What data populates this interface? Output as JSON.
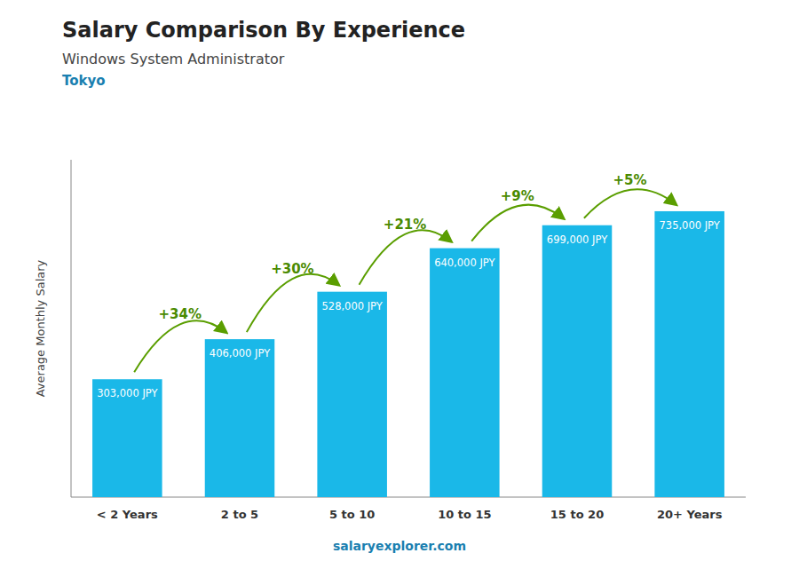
{
  "chart_data": {
    "type": "bar",
    "title": "Salary Comparison By Experience",
    "subtitle": [
      "Windows System Administrator",
      "Tokyo"
    ],
    "ylabel": "Average Monthly Salary",
    "categories": [
      "< 2 Years",
      "2 to 5",
      "5 to 10",
      "10 to 15",
      "15 to 20",
      "20+ Years"
    ],
    "values": [
      303000,
      406000,
      528000,
      640000,
      699000,
      735000
    ],
    "value_labels": [
      "303,000 JPY",
      "406,000 JPY",
      "528,000 JPY",
      "640,000 JPY",
      "699,000 JPY",
      "735,000 JPY"
    ],
    "annotations": [
      "+34%",
      "+30%",
      "+21%",
      "+9%",
      "+5%"
    ],
    "footer": "salaryexplorer.com",
    "color": "#1ab8e8",
    "ylim": [
      0,
      867300
    ],
    "data_labels": true,
    "tick_labels": "x",
    "grid": false
  }
}
